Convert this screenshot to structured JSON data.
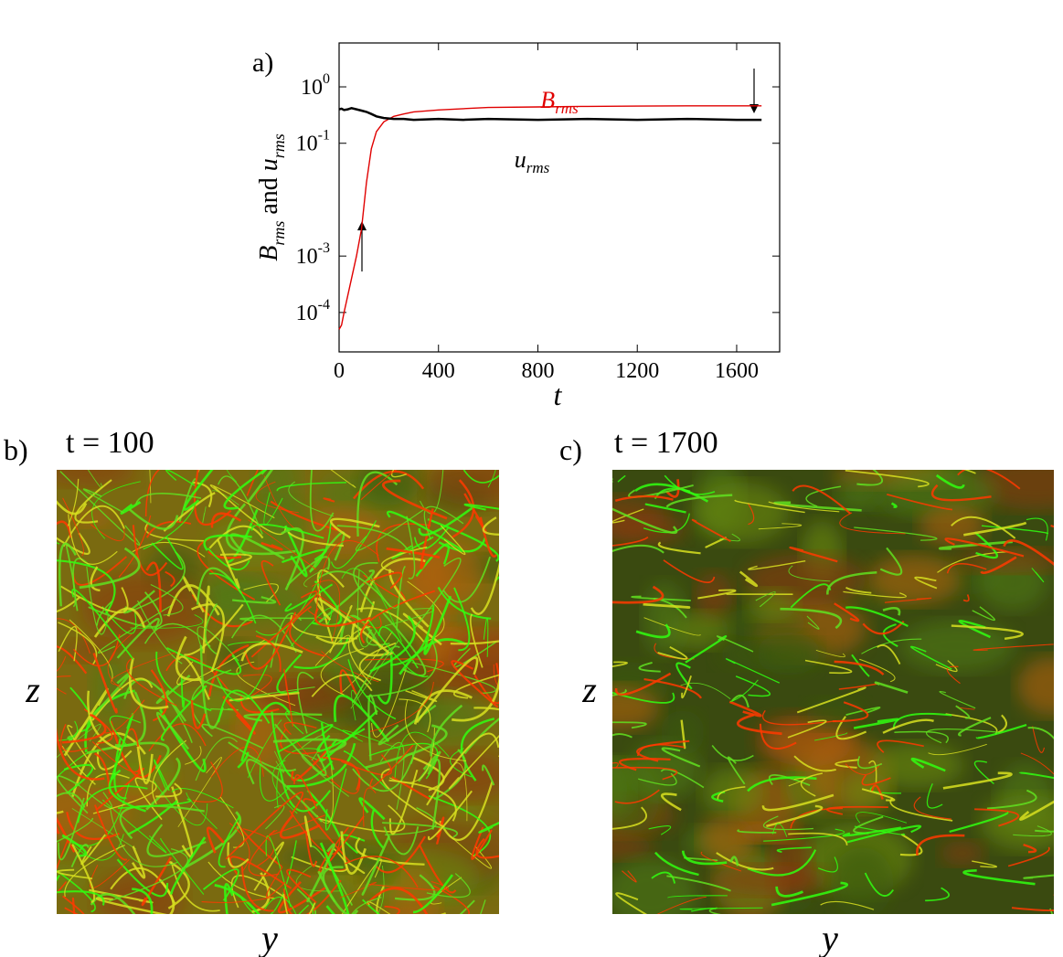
{
  "chart_data": {
    "type": "line",
    "panel_label": "a)",
    "x": [
      0,
      10,
      20,
      35,
      50,
      70,
      90,
      110,
      130,
      150,
      180,
      220,
      260,
      300,
      400,
      500,
      600,
      800,
      1000,
      1200,
      1400,
      1600,
      1700
    ],
    "series": [
      {
        "name": "B",
        "name_subscript": "rms",
        "color": "#e00000",
        "values": [
          5e-05,
          6e-05,
          0.0001,
          0.0002,
          0.0004,
          0.001,
          0.003,
          0.02,
          0.08,
          0.16,
          0.24,
          0.3,
          0.33,
          0.36,
          0.39,
          0.41,
          0.43,
          0.44,
          0.45,
          0.455,
          0.46,
          0.46,
          0.46
        ]
      },
      {
        "name": "u",
        "name_subscript": "rms",
        "color": "#000000",
        "values": [
          0.4,
          0.41,
          0.39,
          0.4,
          0.42,
          0.4,
          0.38,
          0.36,
          0.33,
          0.3,
          0.28,
          0.27,
          0.27,
          0.26,
          0.27,
          0.26,
          0.27,
          0.26,
          0.27,
          0.26,
          0.27,
          0.26,
          0.26
        ]
      }
    ],
    "xlabel": "t",
    "ylabel_parts": [
      {
        "text": "B",
        "style": "italic"
      },
      {
        "text": "rms",
        "style": "sub"
      },
      {
        "text": " and ",
        "style": "normal"
      },
      {
        "text": "u",
        "style": "italic"
      },
      {
        "text": "rms",
        "style": "sub"
      }
    ],
    "xlim": [
      0,
      1773
    ],
    "xticks": [
      0,
      400,
      800,
      1200,
      1600
    ],
    "ylim": [
      2e-05,
      6
    ],
    "log_y": true,
    "yticks": [
      {
        "value": 1,
        "label": "10",
        "exponent": "0"
      },
      {
        "value": 0.1,
        "label": "10",
        "exponent": "-1"
      },
      {
        "value": 0.001,
        "label": "10",
        "exponent": "-3"
      },
      {
        "value": 0.0001,
        "label": "10",
        "exponent": "-4"
      }
    ]
  },
  "panels": [
    {
      "label": "b)",
      "title": "t = 100",
      "xlabel": "y",
      "ylabel": "z"
    },
    {
      "label": "c)",
      "title": "t = 1700",
      "xlabel": "y",
      "ylabel": "z"
    }
  ]
}
